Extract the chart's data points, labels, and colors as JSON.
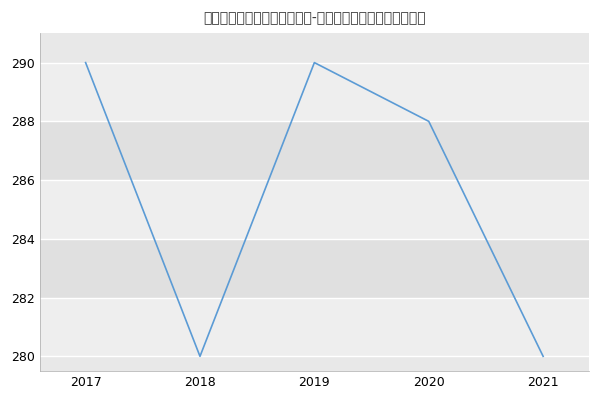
{
  "title": "新疆农业大学农学院动物学（-历年复试）研究生录取分数线",
  "x": [
    2017,
    2018,
    2019,
    2020,
    2021
  ],
  "y": [
    290,
    280,
    290,
    288,
    280
  ],
  "line_color": "#5b9bd5",
  "bg_color": "#ffffff",
  "plot_bg_color": "#e8e8e8",
  "band_color_light": "#eeeeee",
  "band_color_dark": "#e0e0e0",
  "grid_color": "#ffffff",
  "xlim": [
    2016.6,
    2021.4
  ],
  "ylim": [
    279.5,
    291.0
  ],
  "xticks": [
    2017,
    2018,
    2019,
    2020,
    2021
  ],
  "yticks": [
    280,
    282,
    284,
    286,
    288,
    290
  ],
  "title_fontsize": 12,
  "tick_fontsize": 9
}
